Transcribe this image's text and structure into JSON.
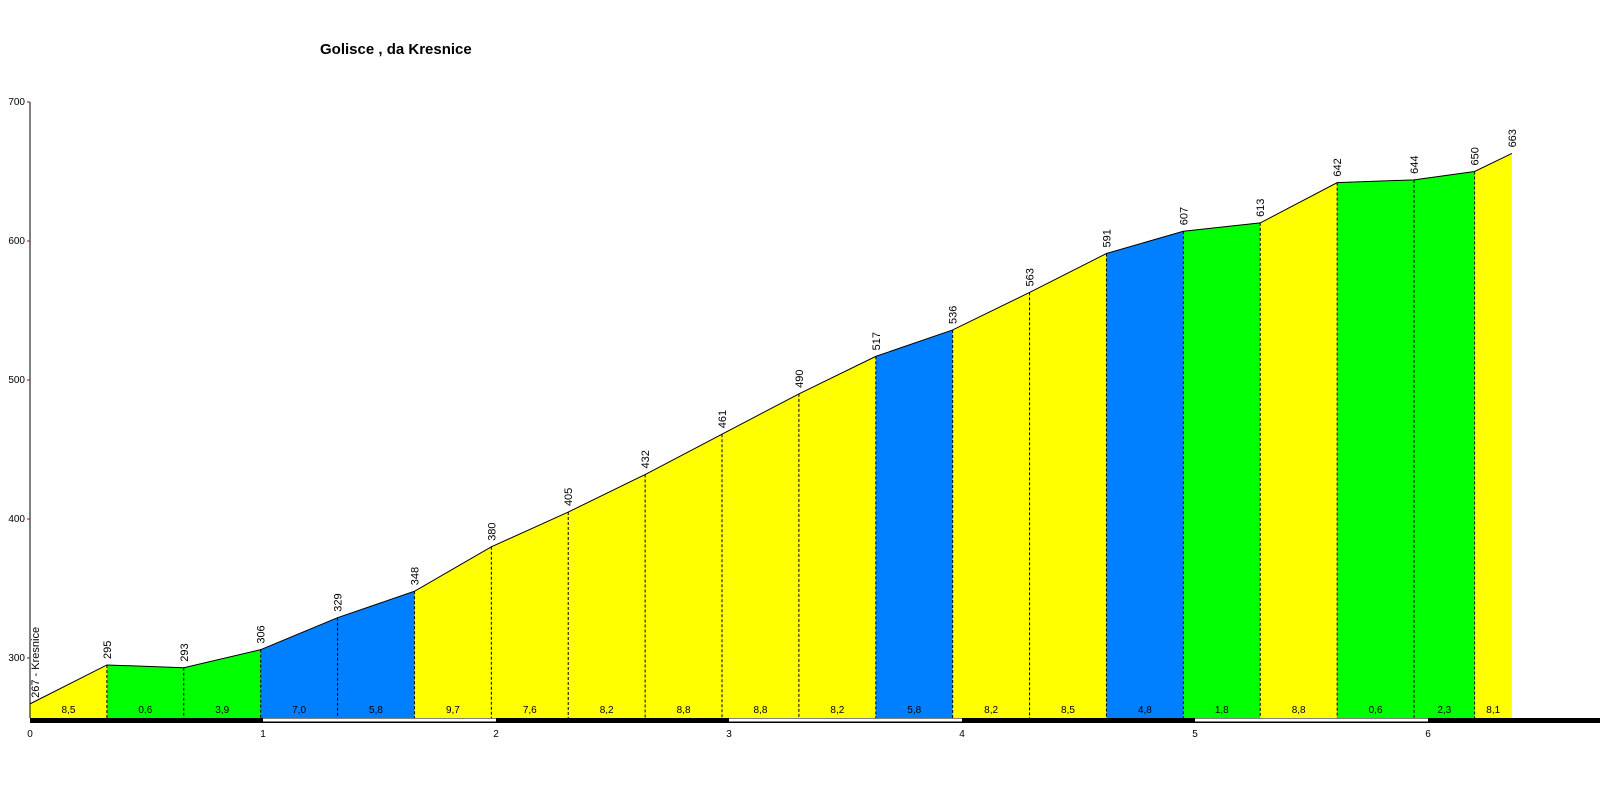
{
  "chart_data": {
    "type": "area",
    "title": "Golisce , da Kresnice",
    "xlabel": "",
    "ylabel": "",
    "xlim": [
      0,
      6.8
    ],
    "ylim": [
      255,
      700
    ],
    "y_ticks": [
      300,
      400,
      500,
      600,
      700
    ],
    "x_ticks": [
      0,
      1,
      2,
      3,
      4,
      5,
      6
    ],
    "start_label": "267 - Kresnice",
    "points": [
      {
        "x": 0.0,
        "y": 267
      },
      {
        "x": 0.33,
        "y": 295
      },
      {
        "x": 0.66,
        "y": 293
      },
      {
        "x": 0.99,
        "y": 306
      },
      {
        "x": 1.32,
        "y": 329
      },
      {
        "x": 1.65,
        "y": 348
      },
      {
        "x": 1.98,
        "y": 380
      },
      {
        "x": 2.31,
        "y": 405
      },
      {
        "x": 2.64,
        "y": 432
      },
      {
        "x": 2.97,
        "y": 461
      },
      {
        "x": 3.3,
        "y": 490
      },
      {
        "x": 3.63,
        "y": 517
      },
      {
        "x": 3.96,
        "y": 536
      },
      {
        "x": 4.29,
        "y": 563
      },
      {
        "x": 4.62,
        "y": 591
      },
      {
        "x": 4.95,
        "y": 607
      },
      {
        "x": 5.28,
        "y": 613
      },
      {
        "x": 5.61,
        "y": 642
      },
      {
        "x": 5.94,
        "y": 644
      },
      {
        "x": 6.2,
        "y": 650
      },
      {
        "x": 6.36,
        "y": 663
      }
    ],
    "elevation_labels": [
      "295",
      "293",
      "306",
      "329",
      "348",
      "380",
      "405",
      "432",
      "461",
      "490",
      "517",
      "536",
      "563",
      "591",
      "607",
      "613",
      "642",
      "644",
      "650",
      "663"
    ],
    "segments": [
      {
        "grade": "8,5",
        "color": "#ffff00"
      },
      {
        "grade": "0,6",
        "color": "#00ff00"
      },
      {
        "grade": "3,9",
        "color": "#00ff00"
      },
      {
        "grade": "7,0",
        "color": "#0080ff"
      },
      {
        "grade": "5,8",
        "color": "#0080ff"
      },
      {
        "grade": "9,7",
        "color": "#ffff00"
      },
      {
        "grade": "7,6",
        "color": "#ffff00"
      },
      {
        "grade": "8,2",
        "color": "#ffff00"
      },
      {
        "grade": "8,8",
        "color": "#ffff00"
      },
      {
        "grade": "8,8",
        "color": "#ffff00"
      },
      {
        "grade": "8,2",
        "color": "#ffff00"
      },
      {
        "grade": "5,8",
        "color": "#0080ff"
      },
      {
        "grade": "8,2",
        "color": "#ffff00"
      },
      {
        "grade": "8,5",
        "color": "#ffff00"
      },
      {
        "grade": "4,8",
        "color": "#0080ff"
      },
      {
        "grade": "1,8",
        "color": "#00ff00"
      },
      {
        "grade": "8,8",
        "color": "#ffff00"
      },
      {
        "grade": "0,6",
        "color": "#00ff00"
      },
      {
        "grade": "2,3",
        "color": "#00ff00"
      },
      {
        "grade": "8,1",
        "color": "#ffff00"
      }
    ],
    "grid": false,
    "legend": "none"
  }
}
